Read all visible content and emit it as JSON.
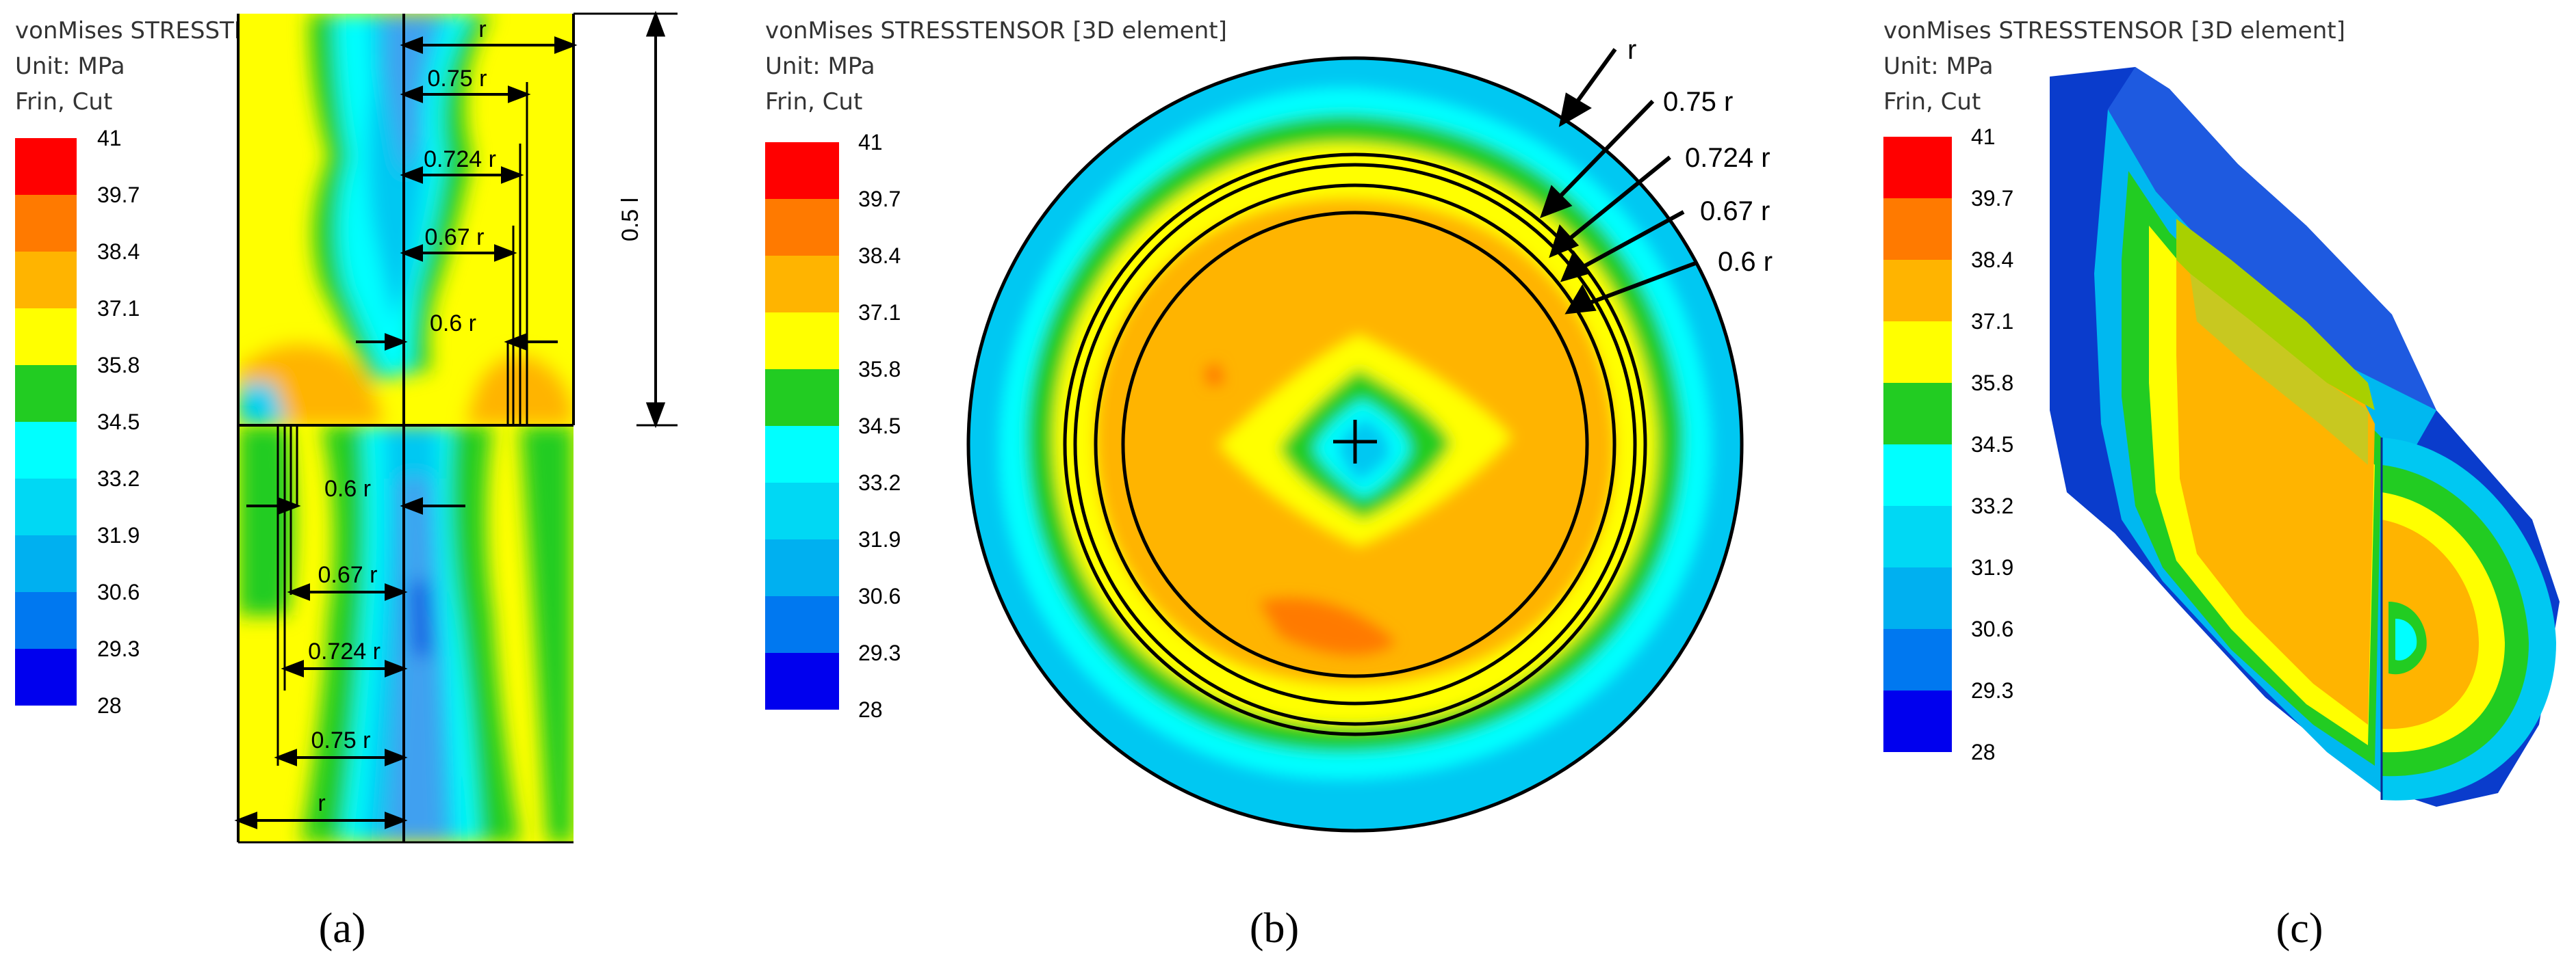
{
  "header": {
    "title": "vonMises STRESSTENSOR [3D element]",
    "unit": "Unit: MPa",
    "mode": "Frin, Cut"
  },
  "legend": {
    "ticks": [
      "41",
      "39.7",
      "38.4",
      "37.1",
      "35.8",
      "34.5",
      "33.2",
      "31.9",
      "30.6",
      "29.3",
      "28"
    ],
    "colors": [
      "#ff0000",
      "#ff7a00",
      "#ffb400",
      "#ffff00",
      "#22cc22",
      "#00ffff",
      "#00d8f4",
      "#00b0f0",
      "#0078f0",
      "#0000ee"
    ]
  },
  "panel_a": {
    "caption": "(a)",
    "top_dims": [
      "r",
      "0.75 r",
      "0.724 r",
      "0.67 r",
      "0.6 r"
    ],
    "bottom_dims": [
      "0.6 r",
      "0.67 r",
      "0.724 r",
      "0.75 r",
      "r"
    ],
    "half_length": "0.5 l"
  },
  "panel_b": {
    "caption": "(b)",
    "ring_labels": [
      "r",
      "0.75 r",
      "0.724 r",
      "0.67 r",
      "0.6 r"
    ]
  },
  "panel_c": {
    "caption": "(c)"
  }
}
